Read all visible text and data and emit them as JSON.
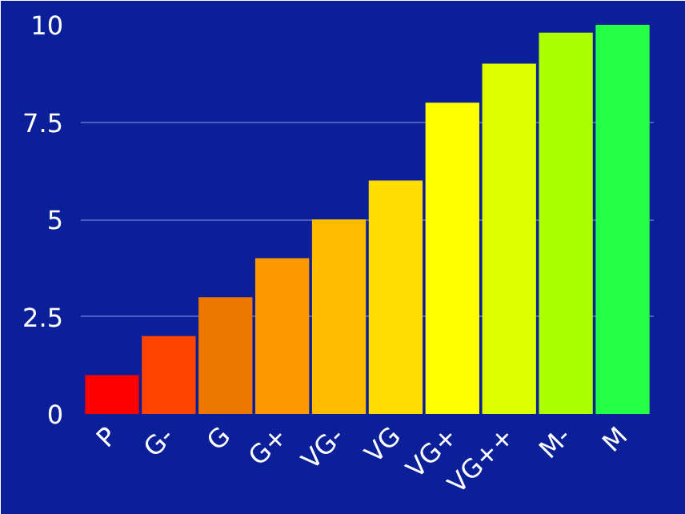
{
  "chart_data": {
    "type": "bar",
    "categories": [
      "P",
      "G-",
      "G",
      "G+",
      "VG-",
      "VG",
      "VG+",
      "VG++",
      "M-",
      "M"
    ],
    "values": [
      1,
      2,
      3,
      4,
      5,
      6,
      8,
      9,
      9.8,
      10
    ],
    "colors": [
      "#ff0000",
      "#ff4400",
      "#ee7700",
      "#ff9900",
      "#ffbb00",
      "#ffdd00",
      "#ffff00",
      "#ddff00",
      "#aaff00",
      "#22ff44"
    ],
    "ylim": [
      0,
      10
    ],
    "yticks": [
      0,
      2.5,
      5,
      7.5,
      10
    ],
    "grid": "y"
  }
}
